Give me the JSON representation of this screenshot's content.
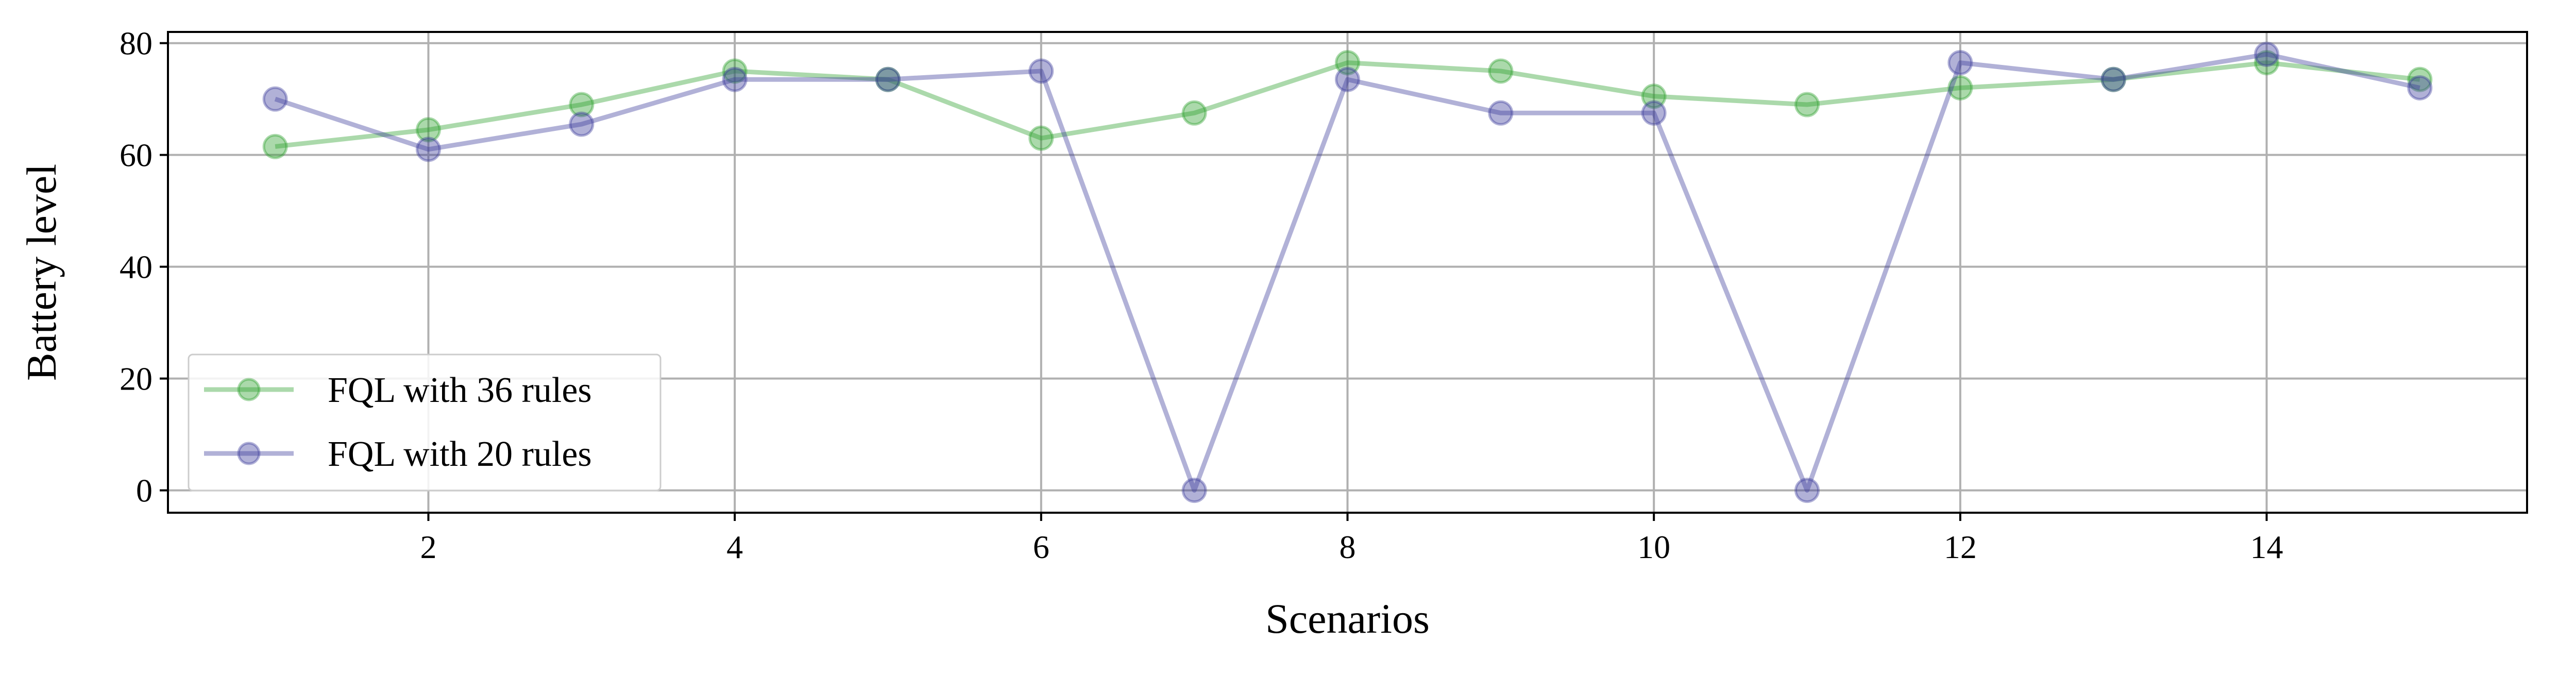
{
  "chart_data": {
    "type": "line",
    "title": "",
    "xlabel": "Scenarios",
    "ylabel": "Battery level",
    "x": [
      1,
      2,
      3,
      4,
      5,
      6,
      7,
      8,
      9,
      10,
      11,
      12,
      13,
      14,
      15
    ],
    "series": [
      {
        "name": "FQL with 36 rules",
        "color": "#2ca02c",
        "values": [
          61.5,
          64.5,
          69,
          75,
          73.5,
          63,
          67.5,
          76.5,
          75,
          70.5,
          69,
          72,
          73.5,
          76.5,
          73.5
        ]
      },
      {
        "name": "FQL with 20 rules",
        "color": "#3b3b9c",
        "values": [
          70,
          61,
          65.5,
          73.5,
          73.5,
          75,
          0,
          73.5,
          67.5,
          67.5,
          0,
          76.5,
          73.5,
          78,
          72
        ]
      }
    ],
    "xlim": [
      0.3,
      15.7
    ],
    "ylim": [
      -4,
      82
    ],
    "xticks": [
      2,
      4,
      6,
      8,
      10,
      12,
      14
    ],
    "yticks": [
      0,
      20,
      40,
      60,
      80
    ],
    "grid": true,
    "legend_position": "lower-left"
  }
}
